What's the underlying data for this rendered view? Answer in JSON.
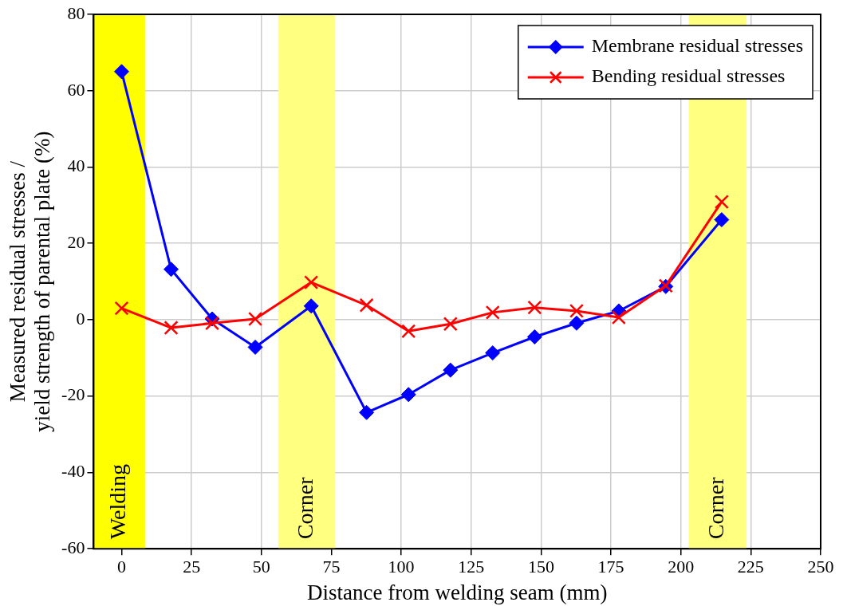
{
  "chart_data": {
    "type": "line",
    "xlabel": "Distance from welding seam (mm)",
    "ylabel": "Measured residual stresses /\nyield strength of parental plate (%)",
    "x": [
      0,
      17.7,
      32.4,
      47.8,
      67.8,
      87.6,
      102.6,
      117.6,
      132.7,
      147.7,
      162.7,
      177.8,
      194.6,
      214.6
    ],
    "series": [
      {
        "name": "Membrane residual stresses",
        "color": "#0000ff",
        "marker": "diamond",
        "values": [
          65,
          13.2,
          0.2,
          -7.2,
          3.6,
          -24.3,
          -19.6,
          -13.2,
          -8.7,
          -4.5,
          -0.9,
          2.3,
          8.7,
          26.2
        ]
      },
      {
        "name": "Bending residual stresses",
        "color": "#ff0000",
        "marker": "cross",
        "values": [
          3,
          -2.1,
          -0.9,
          0.2,
          9.8,
          3.8,
          -3,
          -1.1,
          1.9,
          3.2,
          2.3,
          0.6,
          8.9,
          30.9
        ]
      }
    ],
    "bands": [
      {
        "axis": "x",
        "from": -10,
        "to": 8.5,
        "label": "Welding",
        "color": "#ffff00"
      },
      {
        "axis": "x",
        "from": 56,
        "to": 76.4,
        "label": "Corner",
        "color": "#ffff80"
      },
      {
        "axis": "x",
        "from": 202.8,
        "to": 223.5,
        "label": "Corner",
        "color": "#ffff80"
      }
    ],
    "xlim": [
      -10,
      250
    ],
    "xticks": [
      0,
      25,
      50,
      75,
      100,
      125,
      150,
      175,
      200,
      225,
      250
    ],
    "ylim": [
      -60,
      80
    ],
    "yticks": [
      -60,
      -40,
      -20,
      0,
      20,
      40,
      60,
      80
    ],
    "grid": true,
    "legend": "top right",
    "line_style": "solid"
  }
}
